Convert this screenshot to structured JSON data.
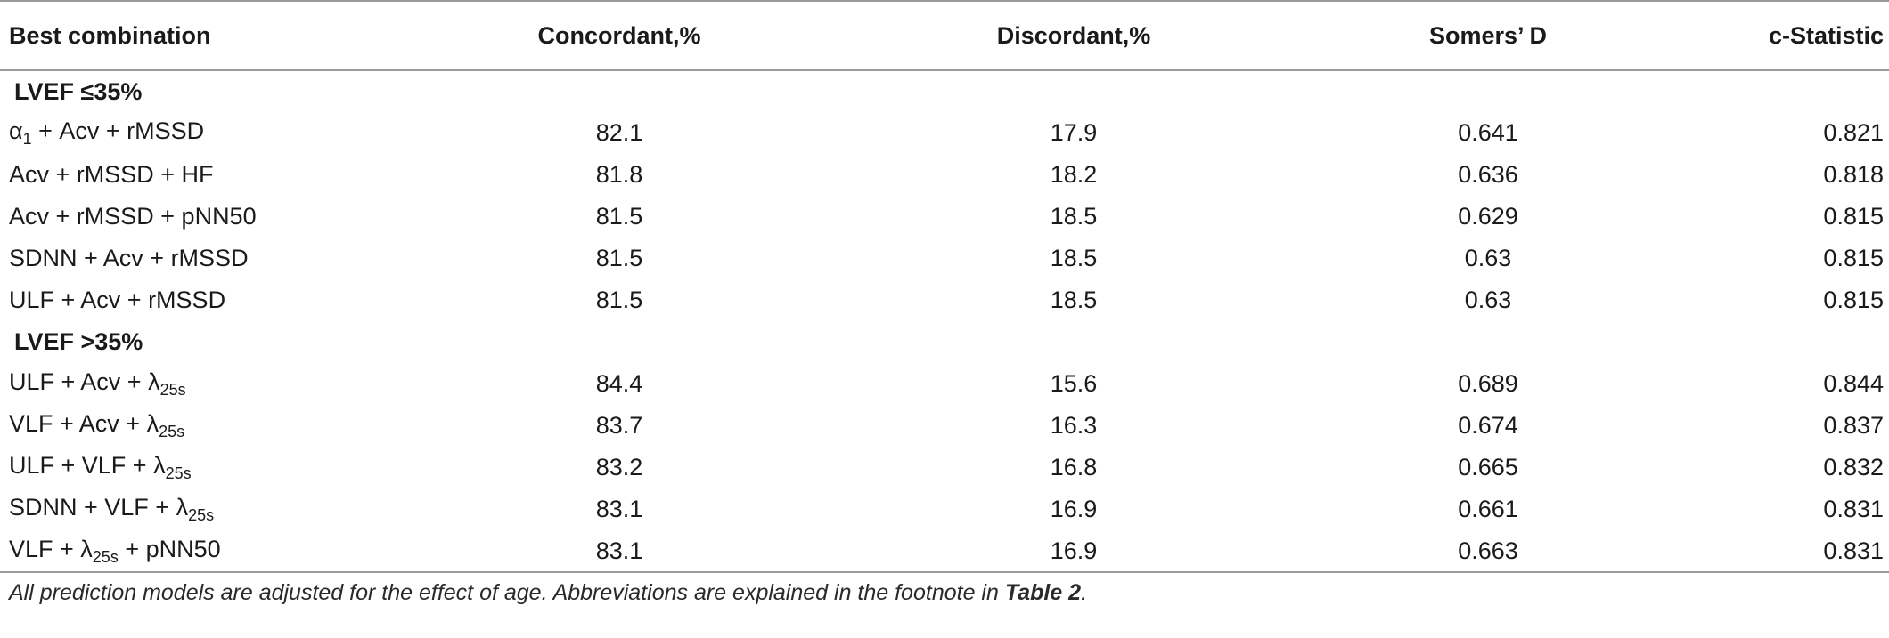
{
  "header": {
    "col1": "Best combination",
    "col2": "Concordant,%",
    "col3": "Discordant,%",
    "col4": "Somers’ D",
    "col5": "c-Statistic"
  },
  "sections": [
    {
      "label": "LVEF ≤35%",
      "rows": [
        {
          "combo": "α1 + Acv + rMSSD",
          "concordant": "82.1",
          "discordant": "17.9",
          "somers_d": "0.641",
          "c_stat": "0.821"
        },
        {
          "combo": "Acv + rMSSD + HF",
          "concordant": "81.8",
          "discordant": "18.2",
          "somers_d": "0.636",
          "c_stat": "0.818"
        },
        {
          "combo": "Acv + rMSSD + pNN50",
          "concordant": "81.5",
          "discordant": "18.5",
          "somers_d": "0.629",
          "c_stat": "0.815"
        },
        {
          "combo": "SDNN + Acv + rMSSD",
          "concordant": "81.5",
          "discordant": "18.5",
          "somers_d": "0.63",
          "c_stat": "0.815"
        },
        {
          "combo": "ULF + Acv + rMSSD",
          "concordant": "81.5",
          "discordant": "18.5",
          "somers_d": "0.63",
          "c_stat": "0.815"
        }
      ]
    },
    {
      "label": "LVEF >35%",
      "rows": [
        {
          "combo": "ULF + Acv + λ25s",
          "concordant": "84.4",
          "discordant": "15.6",
          "somers_d": "0.689",
          "c_stat": "0.844"
        },
        {
          "combo": "VLF + Acv + λ25s",
          "concordant": "83.7",
          "discordant": "16.3",
          "somers_d": "0.674",
          "c_stat": "0.837"
        },
        {
          "combo": "ULF + VLF + λ25s",
          "concordant": "83.2",
          "discordant": "16.8",
          "somers_d": "0.665",
          "c_stat": "0.832"
        },
        {
          "combo": "SDNN + VLF + λ25s",
          "concordant": "83.1",
          "discordant": "16.9",
          "somers_d": "0.661",
          "c_stat": "0.831"
        },
        {
          "combo": "VLF + λ25s + pNN50",
          "concordant": "83.1",
          "discordant": "16.9",
          "somers_d": "0.663",
          "c_stat": "0.831"
        }
      ]
    }
  ],
  "footnote": {
    "text_before": "All prediction models are adjusted for the effect of age. Abbreviations are explained in the footnote in ",
    "reference": "Table 2",
    "text_after": "."
  }
}
